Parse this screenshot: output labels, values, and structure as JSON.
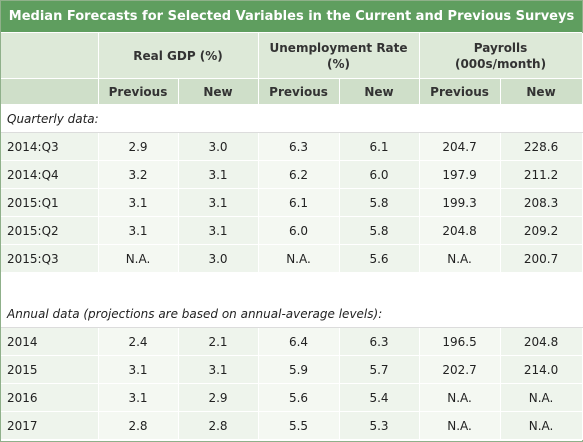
{
  "title": "Median Forecasts for Selected Variables in the Current and Previous Surveys",
  "groups": [
    {
      "label_line1": "Real GDP (%)",
      "label_line2": ""
    },
    {
      "label_line1": "Unemployment Rate",
      "label_line2": "(%)"
    },
    {
      "label_line1": "Payrolls",
      "label_line2": "(000s/month)"
    }
  ],
  "subheaders": [
    "Previous",
    "New",
    "Previous",
    "New",
    "Previous",
    "New"
  ],
  "quarterly": {
    "label": "Quarterly data:",
    "rows": [
      {
        "period": "2014:Q3",
        "values": [
          "2.9",
          "3.0",
          "6.3",
          "6.1",
          "204.7",
          "228.6"
        ]
      },
      {
        "period": "2014:Q4",
        "values": [
          "3.2",
          "3.1",
          "6.2",
          "6.0",
          "197.9",
          "211.2"
        ]
      },
      {
        "period": "2015:Q1",
        "values": [
          "3.1",
          "3.1",
          "6.1",
          "5.8",
          "199.3",
          "208.3"
        ]
      },
      {
        "period": "2015:Q2",
        "values": [
          "3.1",
          "3.1",
          "6.0",
          "5.8",
          "204.8",
          "209.2"
        ]
      },
      {
        "period": "2015:Q3",
        "values": [
          "N.A.",
          "3.0",
          "N.A.",
          "5.6",
          "N.A.",
          "200.7"
        ]
      }
    ]
  },
  "annual": {
    "label": "Annual data (projections are based on annual-average levels):",
    "rows": [
      {
        "period": "2014",
        "values": [
          "2.4",
          "2.1",
          "6.4",
          "6.3",
          "196.5",
          "204.8"
        ]
      },
      {
        "period": "2015",
        "values": [
          "3.1",
          "3.1",
          "5.9",
          "5.7",
          "202.7",
          "214.0"
        ]
      },
      {
        "period": "2016",
        "values": [
          "3.1",
          "2.9",
          "5.6",
          "5.4",
          "N.A.",
          "N.A."
        ]
      },
      {
        "period": "2017",
        "values": [
          "2.8",
          "2.8",
          "5.5",
          "5.3",
          "N.A.",
          "N.A."
        ]
      }
    ]
  }
}
